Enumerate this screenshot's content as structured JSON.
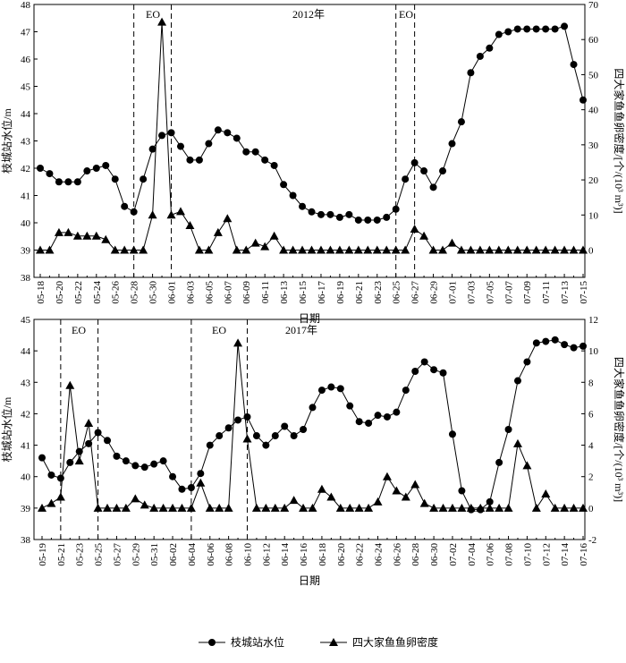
{
  "chart_data": [
    {
      "type": "line",
      "x_label": "日期",
      "y_label": "枝城站水位/m",
      "y2_label": "四大家鱼鱼卵密度/[个/(10³ m³)]",
      "annotations": [
        "EO",
        "2012年",
        "EO"
      ],
      "categories": [
        "05-18",
        null,
        "05-20",
        null,
        "05-22",
        null,
        "05-24",
        null,
        "05-26",
        null,
        "05-28",
        null,
        "05-30",
        null,
        "06-01",
        null,
        "06-03",
        null,
        "06-05",
        null,
        "06-07",
        null,
        "06-09",
        null,
        "06-11",
        null,
        "06-13",
        null,
        "06-15",
        null,
        "06-17",
        null,
        "06-19",
        null,
        "06-21",
        null,
        "06-23",
        null,
        "06-25",
        null,
        "06-27",
        null,
        "06-29",
        null,
        "07-01",
        null,
        "07-03",
        null,
        "07-05",
        null,
        "07-07",
        null,
        "07-09",
        null,
        "07-11",
        null,
        "07-13",
        null,
        "07-15"
      ],
      "series": [
        {
          "name": "枝城站水位",
          "color": "#000000",
          "marker": "circle",
          "values": [
            42.0,
            41.8,
            41.5,
            41.5,
            41.5,
            41.9,
            42.0,
            42.1,
            41.6,
            40.6,
            40.4,
            41.6,
            42.7,
            43.2,
            43.3,
            42.8,
            42.3,
            42.3,
            42.9,
            43.4,
            43.3,
            43.1,
            42.6,
            42.6,
            42.3,
            42.1,
            41.4,
            41.0,
            40.6,
            40.4,
            40.3,
            40.3,
            40.2,
            40.3,
            40.1,
            40.1,
            40.1,
            40.2,
            40.5,
            41.6,
            42.2,
            41.9,
            41.3,
            41.9,
            42.9,
            43.7,
            45.5,
            46.1,
            46.4,
            46.9,
            47.0,
            47.1,
            47.1,
            47.1,
            47.1,
            47.1,
            47.2,
            45.8,
            44.5
          ]
        },
        {
          "name": "四大家鱼鱼卵密度",
          "color": "#000000",
          "marker": "triangle",
          "axis": "y2",
          "values": [
            0,
            0,
            5,
            5,
            4,
            4,
            4,
            3,
            0,
            0,
            0,
            0,
            10,
            65,
            10,
            11,
            7,
            0,
            0,
            5,
            9,
            0,
            0,
            2,
            1,
            4,
            0,
            0,
            0,
            0,
            0,
            0,
            0,
            0,
            0,
            0,
            0,
            0,
            0,
            0,
            6,
            4,
            0,
            0,
            2,
            0,
            0,
            0,
            0,
            0,
            0,
            0,
            0,
            0,
            0,
            0,
            0,
            0,
            0
          ]
        }
      ],
      "ylim": [
        38,
        48
      ],
      "yticks": [
        38,
        39,
        40,
        41,
        42,
        43,
        44,
        45,
        46,
        47,
        48
      ],
      "y2lim": [
        -7.78,
        70
      ],
      "y2ticks": [
        0,
        10,
        20,
        30,
        40,
        50,
        60,
        70
      ]
    },
    {
      "type": "line",
      "x_label": "日期",
      "y_label": "枝城站水位/m",
      "y2_label": "四大家鱼鱼卵密度/[个/(10³ m³)]",
      "annotations": [
        "EO",
        "EO",
        "2017年"
      ],
      "categories": [
        "05-19",
        null,
        "05-21",
        null,
        "05-23",
        null,
        "05-25",
        null,
        "05-27",
        null,
        "05-29",
        null,
        "05-31",
        null,
        "06-02",
        null,
        "06-04",
        null,
        "06-06",
        null,
        "06-08",
        null,
        "06-10",
        null,
        "06-12",
        null,
        "06-14",
        null,
        "06-16",
        null,
        "06-18",
        null,
        "06-20",
        null,
        "06-22",
        null,
        "06-24",
        null,
        "06-26",
        null,
        "06-28",
        null,
        "06-30",
        null,
        "07-02",
        null,
        "07-04",
        null,
        "07-06",
        null,
        "07-08",
        null,
        "07-10",
        null,
        "07-12",
        null,
        "07-14",
        null,
        "07-16"
      ],
      "series": [
        {
          "name": "枝城站水位",
          "color": "#000000",
          "marker": "circle",
          "values": [
            40.6,
            40.05,
            39.95,
            40.45,
            40.8,
            41.05,
            41.4,
            41.15,
            40.65,
            40.5,
            40.35,
            40.3,
            40.4,
            40.5,
            40.0,
            39.6,
            39.65,
            40.1,
            41.0,
            41.3,
            41.55,
            41.8,
            41.9,
            41.3,
            41.0,
            41.3,
            41.6,
            41.3,
            41.5,
            42.2,
            42.75,
            42.85,
            42.8,
            42.25,
            41.75,
            41.7,
            41.95,
            41.9,
            42.05,
            42.75,
            43.35,
            43.65,
            43.4,
            43.3,
            41.35,
            39.55,
            38.95,
            38.95,
            39.2,
            40.45,
            41.5,
            43.05,
            43.65,
            44.25,
            44.3,
            44.35,
            44.2,
            44.1,
            44.15
          ]
        },
        {
          "name": "四大家鱼鱼卵密度",
          "color": "#000000",
          "marker": "triangle",
          "axis": "y2",
          "values": [
            0,
            0.3,
            0.7,
            7.8,
            3.0,
            5.4,
            0,
            0,
            0,
            0,
            0.6,
            0.2,
            0,
            0,
            0,
            0,
            0,
            1.6,
            0,
            0,
            0,
            10.5,
            4.4,
            0,
            0,
            0,
            0,
            0.5,
            0,
            0,
            1.2,
            0.7,
            0,
            0,
            0,
            0,
            0.4,
            2.0,
            1.1,
            0.7,
            1.5,
            0.3,
            0,
            0,
            0,
            0,
            0,
            0,
            0,
            0,
            0,
            4.1,
            2.7,
            0,
            0.9,
            0,
            0,
            0,
            0
          ]
        }
      ],
      "ylim": [
        38,
        45
      ],
      "yticks": [
        38,
        39,
        40,
        41,
        42,
        43,
        44,
        45
      ],
      "y2lim": [
        -2,
        12
      ],
      "y2ticks": [
        -2,
        0,
        2,
        4,
        6,
        8,
        10,
        12
      ]
    }
  ]
}
